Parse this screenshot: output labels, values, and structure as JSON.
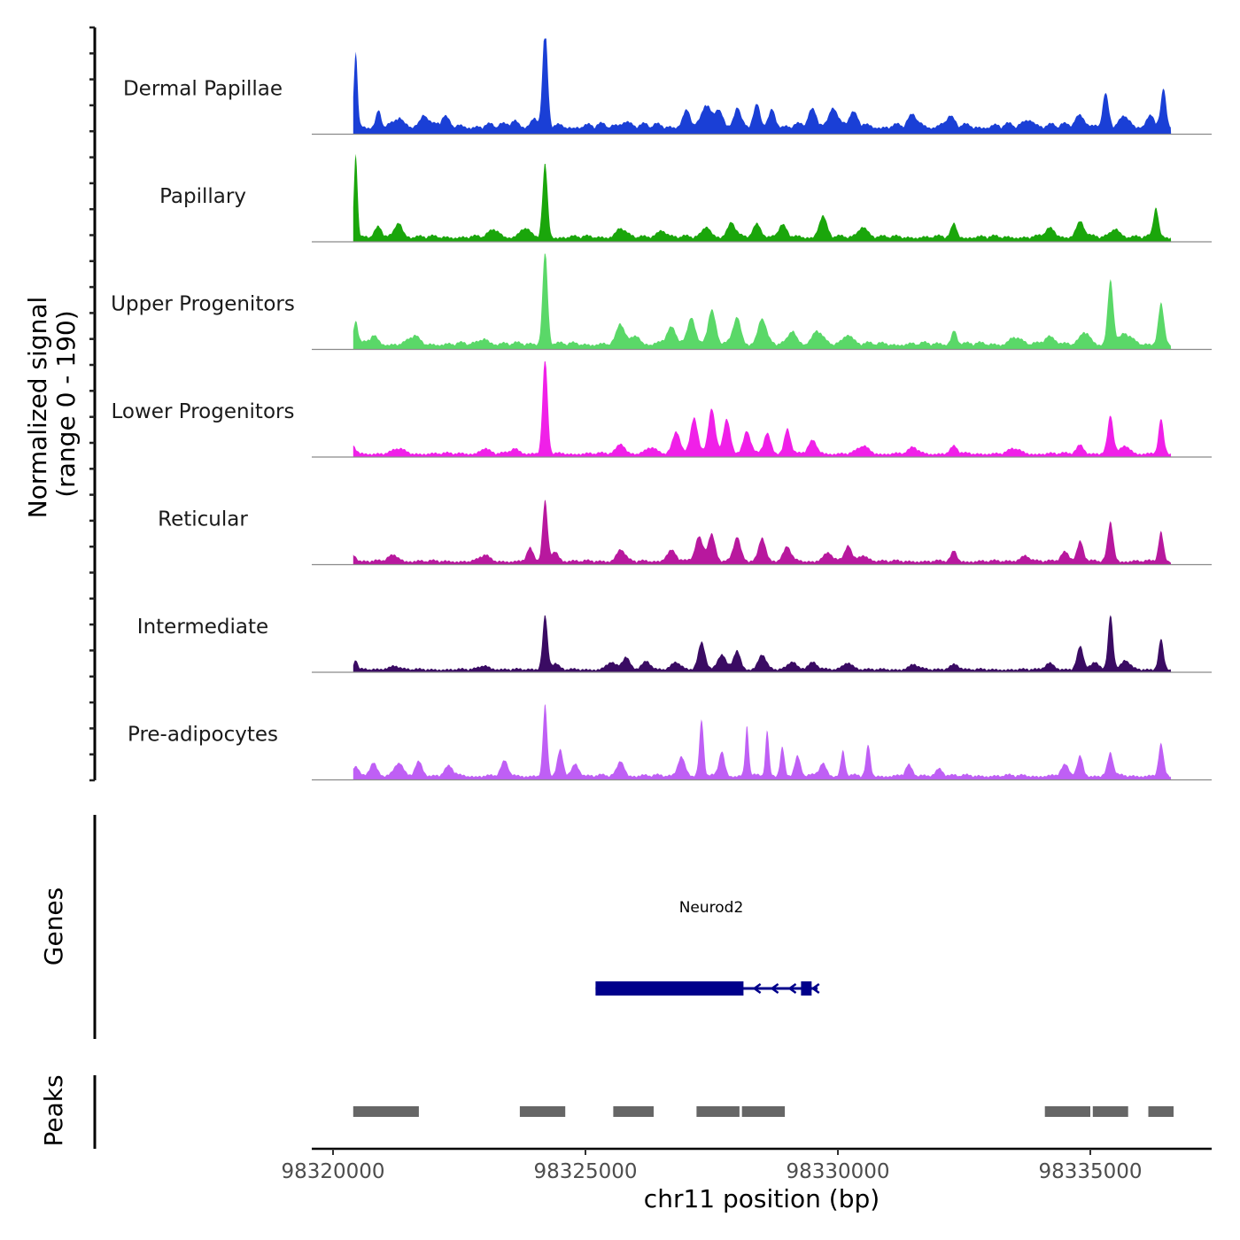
{
  "y_axis_title_line1": "Normalized signal",
  "y_axis_title_line2": "(range 0 - 190)",
  "genes_label": "Genes",
  "peaks_label": "Peaks",
  "chart_data": {
    "type": "area",
    "title": "",
    "xlabel": "chr11 position (bp)",
    "ylabel": "Normalized signal (range 0 - 190)",
    "xlim": [
      98320000,
      98336500
    ],
    "ylim": [
      0,
      190
    ],
    "x_ticks": [
      98320000,
      98325000,
      98330000,
      98335000
    ],
    "x_tick_labels": [
      "98320000",
      "98325000",
      "98330000",
      "98335000"
    ],
    "region_start": 98320400,
    "region_end": 98336600,
    "series": [
      {
        "name": "Dermal Papillae",
        "color": "#1a3fd6",
        "baseline": 22,
        "peaks": [
          [
            98320450,
            152,
            50
          ],
          [
            98320900,
            30,
            70
          ],
          [
            98321300,
            18,
            80
          ],
          [
            98321800,
            25,
            120
          ],
          [
            98322200,
            15,
            120
          ],
          [
            98323600,
            12,
            120
          ],
          [
            98324000,
            14,
            100
          ],
          [
            98324200,
            190,
            70
          ],
          [
            98325800,
            12,
            130
          ],
          [
            98327000,
            30,
            110
          ],
          [
            98327400,
            44,
            110
          ],
          [
            98327650,
            35,
            110
          ],
          [
            98328000,
            38,
            90
          ],
          [
            98328400,
            38,
            90
          ],
          [
            98328700,
            35,
            90
          ],
          [
            98329500,
            30,
            120
          ],
          [
            98329900,
            40,
            120
          ],
          [
            98330300,
            22,
            140
          ],
          [
            98331500,
            20,
            130
          ],
          [
            98332200,
            16,
            130
          ],
          [
            98333800,
            15,
            140
          ],
          [
            98334800,
            24,
            130
          ],
          [
            98335300,
            60,
            80
          ],
          [
            98335700,
            20,
            130
          ],
          [
            98336200,
            18,
            120
          ],
          [
            98336450,
            68,
            70
          ]
        ]
      },
      {
        "name": "Papillary",
        "color": "#1aa60b",
        "baseline": 12,
        "peaks": [
          [
            98320450,
            168,
            50
          ],
          [
            98320900,
            18,
            100
          ],
          [
            98321300,
            30,
            110
          ],
          [
            98323200,
            15,
            150
          ],
          [
            98323800,
            18,
            120
          ],
          [
            98324200,
            145,
            70
          ],
          [
            98325700,
            18,
            130
          ],
          [
            98326500,
            15,
            130
          ],
          [
            98327400,
            22,
            120
          ],
          [
            98327900,
            28,
            110
          ],
          [
            98328400,
            28,
            110
          ],
          [
            98328900,
            22,
            120
          ],
          [
            98329700,
            42,
            110
          ],
          [
            98330500,
            22,
            130
          ],
          [
            98332300,
            26,
            80
          ],
          [
            98334200,
            16,
            140
          ],
          [
            98334800,
            30,
            120
          ],
          [
            98335500,
            18,
            130
          ],
          [
            98336300,
            60,
            70
          ]
        ]
      },
      {
        "name": "Upper Progenitors",
        "color": "#5ad868",
        "baseline": 14,
        "peaks": [
          [
            98320450,
            48,
            60
          ],
          [
            98320800,
            16,
            120
          ],
          [
            98321600,
            16,
            130
          ],
          [
            98323000,
            12,
            130
          ],
          [
            98324200,
            190,
            70
          ],
          [
            98325700,
            40,
            110
          ],
          [
            98326000,
            18,
            120
          ],
          [
            98326700,
            30,
            140
          ],
          [
            98327100,
            55,
            110
          ],
          [
            98327500,
            65,
            110
          ],
          [
            98328000,
            55,
            110
          ],
          [
            98328500,
            52,
            110
          ],
          [
            98329100,
            28,
            120
          ],
          [
            98329600,
            26,
            130
          ],
          [
            98330200,
            20,
            140
          ],
          [
            98332300,
            28,
            80
          ],
          [
            98333500,
            14,
            140
          ],
          [
            98334200,
            18,
            140
          ],
          [
            98334900,
            24,
            120
          ],
          [
            98335400,
            128,
            80
          ],
          [
            98335700,
            20,
            150
          ],
          [
            98336400,
            82,
            80
          ]
        ]
      },
      {
        "name": "Lower Progenitors",
        "color": "#f020e8",
        "baseline": 8,
        "peaks": [
          [
            98320400,
            15,
            80
          ],
          [
            98321300,
            10,
            150
          ],
          [
            98323000,
            10,
            130
          ],
          [
            98323600,
            10,
            130
          ],
          [
            98324200,
            190,
            70
          ],
          [
            98325700,
            20,
            120
          ],
          [
            98326300,
            12,
            130
          ],
          [
            98326800,
            45,
            110
          ],
          [
            98327150,
            72,
            100
          ],
          [
            98327500,
            88,
            100
          ],
          [
            98327800,
            70,
            100
          ],
          [
            98328200,
            45,
            100
          ],
          [
            98328600,
            40,
            100
          ],
          [
            98329000,
            50,
            90
          ],
          [
            98329500,
            25,
            120
          ],
          [
            98330500,
            15,
            150
          ],
          [
            98331500,
            12,
            130
          ],
          [
            98332300,
            14,
            100
          ],
          [
            98333500,
            10,
            150
          ],
          [
            98334800,
            18,
            100
          ],
          [
            98335400,
            75,
            80
          ],
          [
            98335700,
            15,
            130
          ],
          [
            98336400,
            68,
            70
          ]
        ]
      },
      {
        "name": "Reticular",
        "color": "#b8189e",
        "baseline": 8,
        "peaks": [
          [
            98320400,
            14,
            80
          ],
          [
            98321200,
            12,
            150
          ],
          [
            98323000,
            12,
            130
          ],
          [
            98323900,
            25,
            90
          ],
          [
            98324200,
            120,
            70
          ],
          [
            98324400,
            20,
            100
          ],
          [
            98325700,
            24,
            120
          ],
          [
            98326700,
            22,
            130
          ],
          [
            98327250,
            48,
            110
          ],
          [
            98327500,
            56,
            100
          ],
          [
            98328000,
            48,
            100
          ],
          [
            98328500,
            48,
            100
          ],
          [
            98329000,
            28,
            110
          ],
          [
            98329800,
            16,
            140
          ],
          [
            98330200,
            32,
            90
          ],
          [
            98330500,
            12,
            150
          ],
          [
            98332300,
            20,
            80
          ],
          [
            98333700,
            12,
            130
          ],
          [
            98334500,
            20,
            110
          ],
          [
            98334800,
            40,
            90
          ],
          [
            98335400,
            78,
            80
          ],
          [
            98336400,
            58,
            70
          ]
        ]
      },
      {
        "name": "Intermediate",
        "color": "#3a0b63",
        "baseline": 6,
        "peaks": [
          [
            98320450,
            20,
            50
          ],
          [
            98321200,
            8,
            150
          ],
          [
            98323000,
            8,
            150
          ],
          [
            98324200,
            110,
            70
          ],
          [
            98324400,
            12,
            100
          ],
          [
            98325500,
            14,
            130
          ],
          [
            98325800,
            24,
            110
          ],
          [
            98326200,
            18,
            120
          ],
          [
            98326800,
            14,
            130
          ],
          [
            98327300,
            55,
            100
          ],
          [
            98327700,
            30,
            110
          ],
          [
            98328000,
            38,
            100
          ],
          [
            98328500,
            30,
            110
          ],
          [
            98329100,
            16,
            130
          ],
          [
            98329500,
            14,
            130
          ],
          [
            98330200,
            14,
            140
          ],
          [
            98331500,
            10,
            140
          ],
          [
            98332300,
            12,
            120
          ],
          [
            98334200,
            14,
            120
          ],
          [
            98334800,
            45,
            90
          ],
          [
            98335100,
            14,
            120
          ],
          [
            98335400,
            110,
            70
          ],
          [
            98335700,
            18,
            120
          ],
          [
            98336400,
            62,
            70
          ]
        ]
      },
      {
        "name": "Pre-adipocytes",
        "color": "#bf5ff5",
        "baseline": 10,
        "peaks": [
          [
            98320450,
            20,
            80
          ],
          [
            98320800,
            28,
            100
          ],
          [
            98321300,
            26,
            110
          ],
          [
            98321700,
            30,
            100
          ],
          [
            98322300,
            18,
            120
          ],
          [
            98323400,
            28,
            100
          ],
          [
            98324200,
            140,
            60
          ],
          [
            98324500,
            50,
            80
          ],
          [
            98324800,
            25,
            100
          ],
          [
            98325700,
            30,
            100
          ],
          [
            98326900,
            40,
            100
          ],
          [
            98327300,
            110,
            60
          ],
          [
            98327700,
            50,
            80
          ],
          [
            98328200,
            100,
            50
          ],
          [
            98328600,
            90,
            50
          ],
          [
            98328900,
            60,
            60
          ],
          [
            98329200,
            38,
            80
          ],
          [
            98329700,
            25,
            100
          ],
          [
            98330100,
            50,
            60
          ],
          [
            98330600,
            60,
            60
          ],
          [
            98331400,
            20,
            90
          ],
          [
            98332000,
            16,
            100
          ],
          [
            98334500,
            20,
            110
          ],
          [
            98334800,
            40,
            80
          ],
          [
            98335400,
            45,
            80
          ],
          [
            98336400,
            62,
            70
          ]
        ]
      }
    ],
    "gene": {
      "name": "Neurod2",
      "strand": "-",
      "start": 98325200,
      "end": 98329600,
      "thick_start": 98325200,
      "thick_end": 98328130,
      "exon2_start": 98329270,
      "exon2_end": 98329480
    },
    "peak_regions": [
      [
        98320400,
        98321700
      ],
      [
        98323700,
        98324600
      ],
      [
        98325550,
        98326350
      ],
      [
        98327200,
        98328050
      ],
      [
        98328100,
        98328950
      ],
      [
        98334100,
        98335000
      ],
      [
        98335050,
        98335750
      ],
      [
        98336150,
        98336650
      ]
    ]
  }
}
